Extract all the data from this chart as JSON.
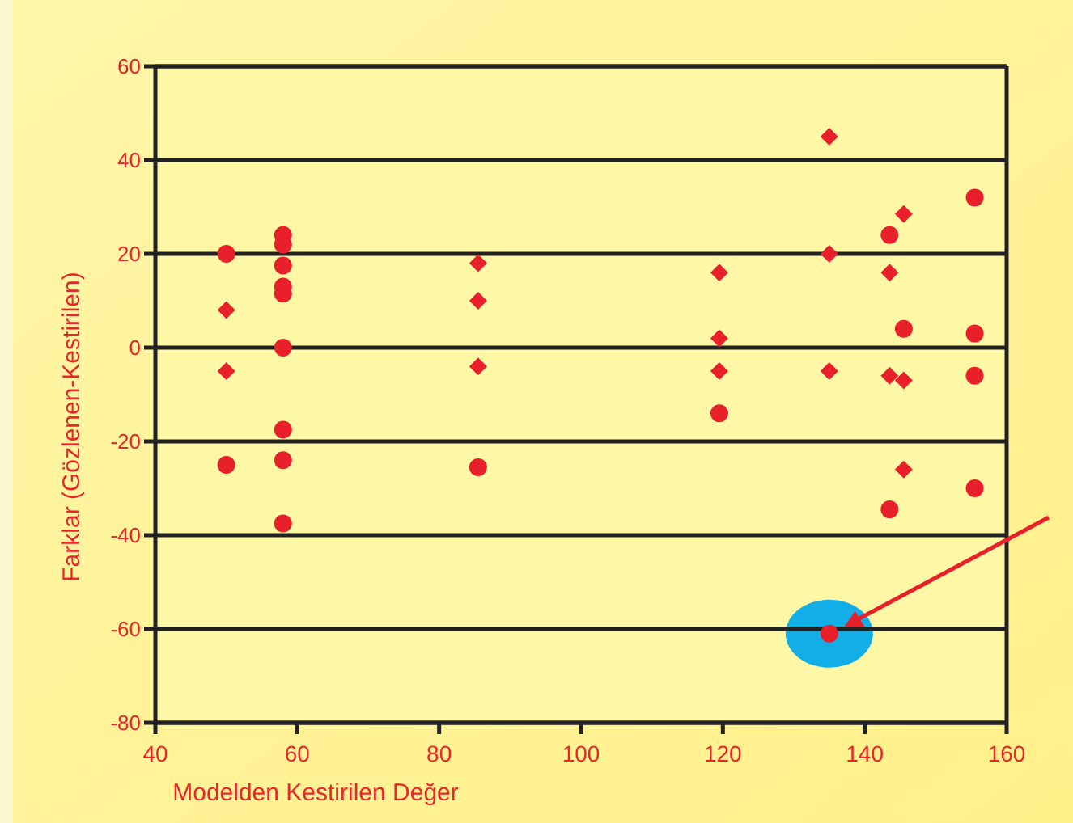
{
  "chart_data": {
    "type": "scatter",
    "xlabel": "Modelden Kestirilen Değer",
    "ylabel": "Farklar (Gözlenen-Kestirilen)",
    "xlim": [
      40,
      160
    ],
    "ylim": [
      -80,
      60
    ],
    "xticks": [
      40,
      60,
      80,
      100,
      120,
      140,
      160
    ],
    "yticks": [
      -80,
      -60,
      -40,
      -20,
      0,
      20,
      40,
      60
    ],
    "grid": "y",
    "series": [
      {
        "color": "#e8202a",
        "marker": "circle",
        "x": [
          50,
          50,
          58,
          58,
          58,
          58,
          58,
          58,
          58,
          58,
          58,
          85.5,
          119.5,
          135,
          143.5,
          143.5,
          145.5,
          155.5,
          155.5,
          155.5,
          155.5
        ],
        "values": [
          20,
          -25,
          24,
          22,
          17.5,
          13,
          11.5,
          0,
          -17.5,
          -24,
          -37.5,
          -25.5,
          -14,
          -61,
          24,
          -34.5,
          4,
          32,
          3,
          -6,
          -30
        ]
      },
      {
        "color": "#e8202a",
        "marker": "diamond",
        "x": [
          50,
          50,
          85.5,
          85.5,
          85.5,
          119.5,
          119.5,
          119.5,
          135,
          135,
          135,
          143.5,
          143.5,
          145.5,
          145.5,
          145.5
        ],
        "values": [
          8,
          -5,
          18,
          10,
          -4,
          16,
          2,
          -5,
          45,
          20,
          -5,
          16,
          -6,
          28.5,
          -7,
          -26
        ]
      }
    ]
  }
}
